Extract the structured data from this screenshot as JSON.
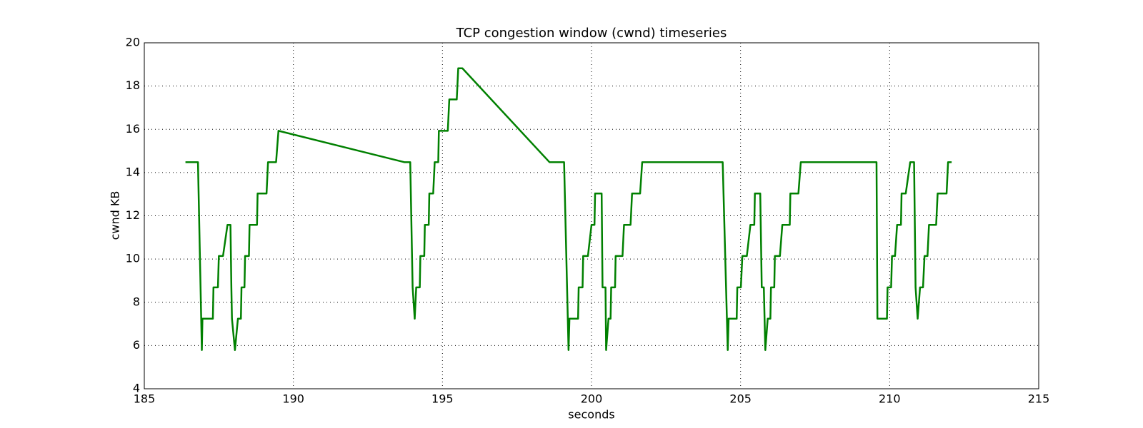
{
  "chart_data": {
    "type": "line",
    "title": "TCP congestion window (cwnd) timeseries",
    "x_label": "seconds",
    "y_label": "cwnd KB",
    "xlim": [
      185,
      215
    ],
    "xticks": [
      185,
      190,
      195,
      200,
      205,
      210,
      215
    ],
    "ylim": [
      4,
      20
    ],
    "yticks": [
      4,
      6,
      8,
      10,
      12,
      14,
      16,
      18,
      20
    ],
    "grid": true,
    "series": [
      {
        "color": "#008000",
        "x": [
          186.38,
          186.8,
          186.93,
          186.95,
          187.3,
          187.32,
          187.47,
          187.5,
          187.64,
          187.79,
          187.89,
          187.92,
          187.94,
          188.04,
          188.14,
          188.24,
          188.26,
          188.36,
          188.38,
          188.51,
          188.53,
          188.78,
          188.8,
          189.1,
          189.15,
          189.42,
          189.5,
          193.72,
          193.92,
          194.0,
          194.07,
          194.12,
          194.24,
          194.26,
          194.39,
          194.41,
          194.54,
          194.56,
          194.69,
          194.74,
          194.86,
          194.88,
          195.18,
          195.23,
          195.48,
          195.53,
          195.67,
          198.59,
          199.08,
          199.23,
          199.26,
          199.55,
          199.57,
          199.7,
          199.72,
          199.88,
          200.0,
          200.1,
          200.12,
          200.34,
          200.37,
          200.47,
          200.49,
          200.57,
          200.64,
          200.66,
          200.79,
          200.81,
          201.04,
          201.09,
          201.31,
          201.36,
          201.63,
          201.7,
          204.4,
          204.57,
          204.6,
          204.87,
          204.89,
          205.01,
          205.06,
          205.21,
          205.33,
          205.46,
          205.48,
          205.66,
          205.71,
          205.78,
          205.83,
          205.91,
          206.0,
          206.02,
          206.13,
          206.15,
          206.32,
          206.4,
          206.65,
          206.67,
          206.94,
          207.02,
          209.56,
          209.59,
          209.91,
          209.93,
          210.05,
          210.08,
          210.18,
          210.25,
          210.38,
          210.4,
          210.54,
          210.69,
          210.82,
          210.87,
          210.94,
          211.02,
          211.12,
          211.17,
          211.27,
          211.32,
          211.56,
          211.61,
          211.91,
          211.96,
          212.08
        ],
        "values": [
          14.48,
          14.48,
          5.79,
          7.24,
          7.24,
          8.69,
          8.69,
          10.14,
          10.14,
          11.58,
          11.58,
          8.69,
          7.24,
          5.79,
          7.24,
          7.24,
          8.69,
          8.69,
          10.14,
          10.14,
          11.58,
          11.58,
          13.03,
          13.03,
          14.48,
          14.48,
          15.93,
          14.48,
          14.48,
          8.69,
          7.24,
          8.69,
          8.69,
          10.14,
          10.14,
          11.58,
          11.58,
          13.03,
          13.03,
          14.48,
          14.48,
          15.93,
          15.93,
          17.38,
          17.38,
          18.82,
          18.82,
          14.48,
          14.48,
          5.79,
          7.24,
          7.24,
          8.69,
          8.69,
          10.14,
          10.14,
          11.58,
          11.58,
          13.03,
          13.03,
          8.69,
          8.69,
          5.79,
          7.24,
          7.24,
          8.69,
          8.69,
          10.14,
          10.14,
          11.58,
          11.58,
          13.03,
          13.03,
          14.48,
          14.48,
          5.79,
          7.24,
          7.24,
          8.69,
          8.69,
          10.14,
          10.14,
          11.58,
          11.58,
          13.03,
          13.03,
          8.69,
          8.69,
          5.79,
          7.24,
          7.24,
          8.69,
          8.69,
          10.14,
          10.14,
          11.58,
          11.58,
          13.03,
          13.03,
          14.48,
          14.48,
          7.24,
          7.24,
          8.69,
          8.69,
          10.14,
          10.14,
          11.58,
          11.58,
          13.03,
          13.03,
          14.48,
          14.48,
          8.69,
          7.24,
          8.69,
          8.69,
          10.14,
          10.14,
          11.58,
          11.58,
          13.03,
          13.03,
          14.48,
          14.48
        ]
      }
    ]
  }
}
